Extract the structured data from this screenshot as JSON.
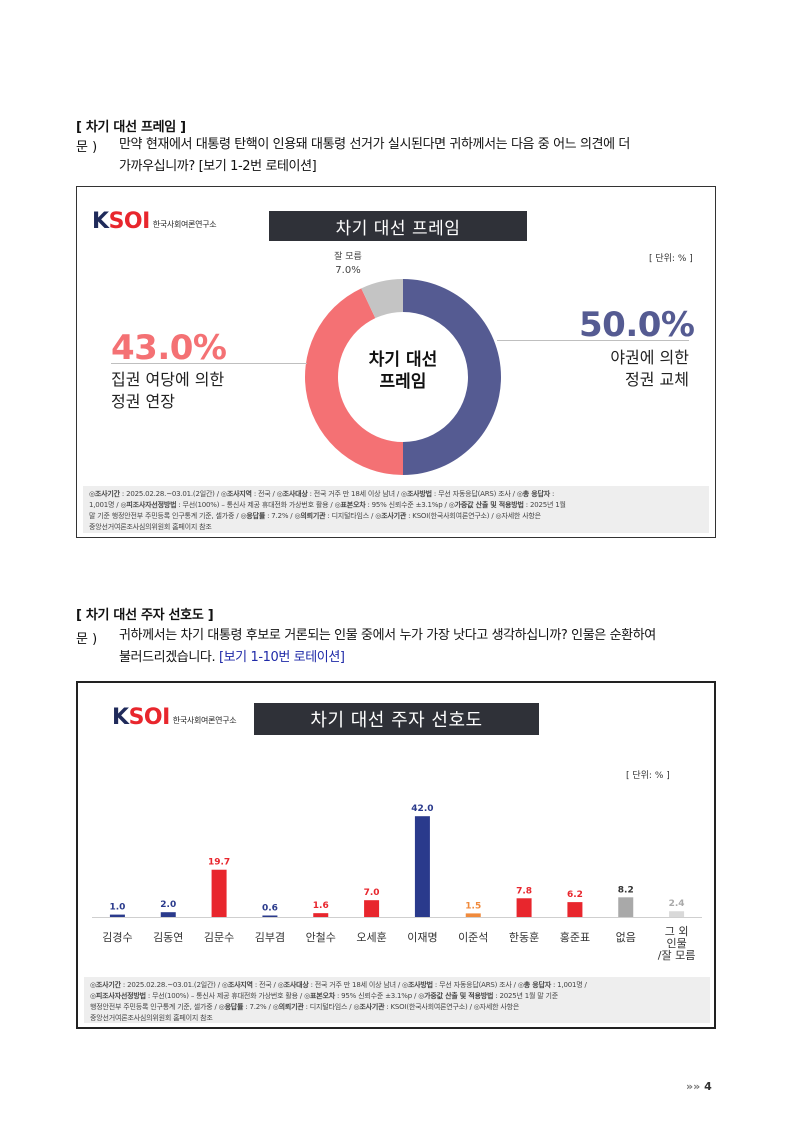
{
  "section1": {
    "title": "[ 차기 대선 프레임 ]",
    "q_label": "문 )",
    "q_line1": "만약 현재에서 대통령 탄핵이 인용돼 대통령 선거가 실시된다면 귀하께서는 다음 중 어느 의견에 더",
    "q_line2": "가까우십니까? [보기 1-2번 로테이션]"
  },
  "chart1": {
    "logo_mark_a": "K",
    "logo_mark_b": "SOI",
    "logo_sub": "한국사회여론연구소",
    "banner": "차기 대선 프레임",
    "unit": "[ 단위: % ]",
    "center_line1": "차기 대선",
    "center_line2": "프레임",
    "left_pct": "43.0%",
    "left_label1": "집권 여당에 의한",
    "left_label2": "정권 연장",
    "right_pct": "50.0%",
    "right_label1": "야권에 의한",
    "right_label2": "정권 교체",
    "dk_label": "잘 모름",
    "dk_pct": "7.0%",
    "footnote": {
      "l1a": "◎조사기간",
      "l1b": " : 2025.02.28.~03.01.(2일간)  / ",
      "l1c": "◎조사지역",
      "l1d": " : 전국 / ",
      "l1e": "◎조사대상",
      "l1f": " : 전국 거주 만 18세 이상 남녀 / ",
      "l1g": "◎조사방법",
      "l1h": " : 무선 자동응답(ARS) 조사 / ",
      "l1i": "◎총 응답자",
      "l1j": " :",
      "l2a": "1,001명 / ",
      "l2b": "◎피조사자선정방법",
      "l2c": " : 무선(100%) – 통신사 제공 휴대전화 가상번호 활용 / ",
      "l2d": "◎표본오차",
      "l2e": " : 95% 신뢰수준 ±3.1%p / ",
      "l2f": "◎가중값 산출 및 적용방법",
      "l2g": " : 2025년 1월",
      "l3a": "말 기준 행정안전부 주민등록 인구통계 기준, 셀가중 / ",
      "l3b": "◎응답률",
      "l3c": " : 7.2% / ",
      "l3d": "◎의뢰기관",
      "l3e": " : 디지털타임스 / ",
      "l3f": "◎조사기관",
      "l3g": " : KSOI(한국사회여론연구소) / ◎자세한 사항은",
      "l4": "중앙선거여론조사심의위원회 홈페이지 참조"
    }
  },
  "section2": {
    "title": "[ 차기 대선 주자 선호도 ]",
    "q_label": "문 )",
    "q_line1": "귀하께서는 차기 대통령 후보로 거론되는 인물 중에서 누가 가장 낫다고 생각하십니까? 인물은 순환하여",
    "q_line2a": "불러드리겠습니다. ",
    "q_line2b": "[보기 1-10번 로테이션]"
  },
  "chart2": {
    "logo_mark_a": "K",
    "logo_mark_b": "SOI",
    "logo_sub": "한국사회여론연구소",
    "banner": "차기 대선 주자 선호도",
    "unit": "[ 단위: % ]",
    "footnote": {
      "l1a": "◎조사기간",
      "l1b": " : 2025.02.28.~03.01.(2일간)  / ",
      "l1c": "◎조사지역",
      "l1d": " : 전국 / ",
      "l1e": "◎조사대상",
      "l1f": " : 전국 거주 만 18세 이상 남녀 / ",
      "l1g": "◎조사방법",
      "l1h": " : 무선 자동응답(ARS) 조사 / ",
      "l1i": "◎총 응답자",
      "l1j": " : 1,001명 /",
      "l2a": "◎피조사자선정방법",
      "l2b": " : 무선(100%) – 통신사 제공 휴대전화 가상번호 활용 / ",
      "l2c": "◎표본오차",
      "l2d": " : 95% 신뢰수준 ±3.1%p / ",
      "l2e": "◎가중값 산출 및 적용방법",
      "l2f": " : 2025년 1월 말 기준",
      "l3a": "행정안전부 주민등록 인구통계 기준, 셀가중 / ",
      "l3b": "◎응답률",
      "l3c": " : 7.2% / ",
      "l3d": "◎의뢰기관",
      "l3e": " : 디지털타임스 / ",
      "l3f": "◎조사기관",
      "l3g": " : KSOI(한국사회여론연구소) / ◎자세한 사항은",
      "l4": "중앙선거여론조사심의위원회 홈페이지 참조"
    }
  },
  "page_number": "4",
  "page_arrow": "»»",
  "colors": {
    "navy": "#555b92",
    "red": "#f47174",
    "gray": "#c4c4c4",
    "bar_navy": "#2a3a8c",
    "bar_red": "#e8262d",
    "bar_orange": "#f08a3c",
    "bar_gray": "#a9a9a9",
    "bar_lightgray": "#d9d9d9"
  },
  "chart_data": [
    {
      "type": "pie",
      "title": "차기 대선 프레임",
      "categories": [
        "야권에 의한 정권 교체",
        "집권 여당에 의한 정권 연장",
        "잘 모름"
      ],
      "values": [
        50.0,
        43.0,
        7.0
      ],
      "colors": [
        "#555b92",
        "#f47174",
        "#c4c4c4"
      ],
      "unit": "%"
    },
    {
      "type": "bar",
      "title": "차기 대선 주자 선호도",
      "categories": [
        "김경수",
        "김동연",
        "김문수",
        "김부겸",
        "안철수",
        "오세훈",
        "이재명",
        "이준석",
        "한동훈",
        "홍준표",
        "없음",
        "그 외 인물 /잘 모름"
      ],
      "values": [
        1.0,
        2.0,
        19.7,
        0.6,
        1.6,
        7.0,
        42.0,
        1.5,
        7.8,
        6.2,
        8.2,
        2.4
      ],
      "value_labels": [
        "1.0",
        "2.0",
        "19.7",
        "0.6",
        "1.6",
        "7.0",
        "42.0",
        "1.5",
        "7.8",
        "6.2",
        "8.2",
        "2.4"
      ],
      "colors": [
        "#2a3a8c",
        "#2a3a8c",
        "#e8262d",
        "#2a3a8c",
        "#e8262d",
        "#e8262d",
        "#2a3a8c",
        "#f08a3c",
        "#e8262d",
        "#e8262d",
        "#a9a9a9",
        "#d9d9d9"
      ],
      "label_colors": [
        "#2a3a8c",
        "#2a3a8c",
        "#e8262d",
        "#2a3a8c",
        "#e8262d",
        "#e8262d",
        "#2a3a8c",
        "#f08a3c",
        "#e8262d",
        "#e8262d",
        "#333333",
        "#a9a9a9"
      ],
      "tick_lines": [
        [
          "김경수"
        ],
        [
          "김동연"
        ],
        [
          "김문수"
        ],
        [
          "김부겸"
        ],
        [
          "안철수"
        ],
        [
          "오세훈"
        ],
        [
          "이재명"
        ],
        [
          "이준석"
        ],
        [
          "한동훈"
        ],
        [
          "홍준표"
        ],
        [
          "없음"
        ],
        [
          "그 외",
          "인물",
          "/잘 모름"
        ]
      ],
      "unit": "%",
      "ylim": [
        0,
        45
      ]
    }
  ]
}
